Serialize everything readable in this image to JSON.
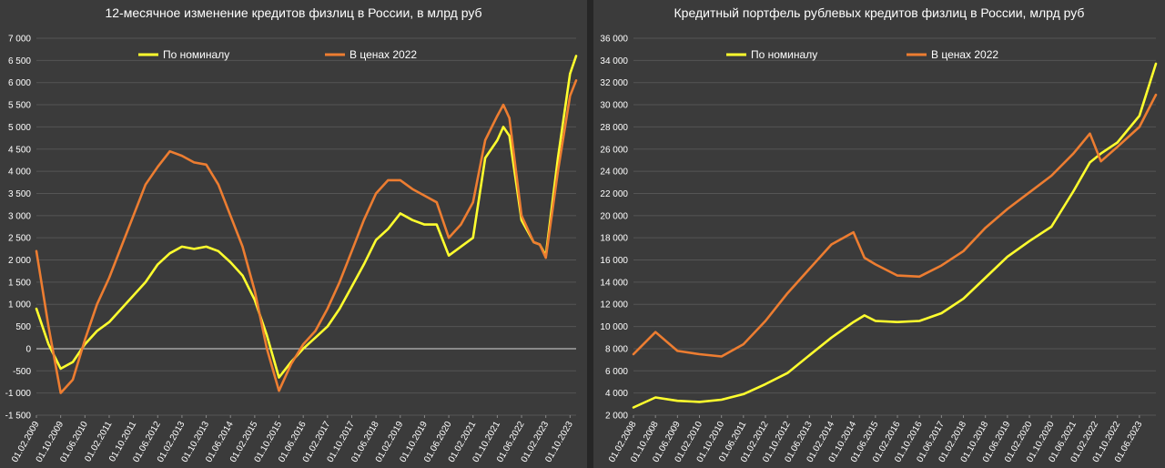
{
  "colors": {
    "nominal": "#ffff2e",
    "real": "#ed7d31",
    "grid": "#555555",
    "zero": "#d9d9d9"
  },
  "chart_data": [
    {
      "type": "line",
      "title": "12-месячное изменение кредитов физлиц в России, в млрд руб",
      "ylim": [
        -1500,
        7000
      ],
      "yticks": [
        -1500,
        -1000,
        -500,
        0,
        500,
        1000,
        1500,
        2000,
        2500,
        3000,
        3500,
        4000,
        4500,
        5000,
        5500,
        6000,
        6500,
        7000
      ],
      "ytick_labels": [
        "-1 500",
        "-1 000",
        "-500",
        "0",
        "500",
        "1 000",
        "1 500",
        "2 000",
        "2 500",
        "3 000",
        "3 500",
        "4 000",
        "4 500",
        "5 000",
        "5 500",
        "6 000",
        "6 500",
        "7 000"
      ],
      "xlim": [
        "2009-02-01",
        "2023-12-01"
      ],
      "xtick_labels": [
        "01.02.2009",
        "01.10.2009",
        "01.06.2010",
        "01.02.2011",
        "01.10.2011",
        "01.06.2012",
        "01.02.2013",
        "01.10.2013",
        "01.06.2014",
        "01.02.2015",
        "01.10.2015",
        "01.06.2016",
        "01.02.2017",
        "01.10.2017",
        "01.06.2018",
        "01.02.2019",
        "01.10.2019",
        "01.06.2020",
        "01.02.2021",
        "01.10.2021",
        "01.06.2022",
        "01.02.2023",
        "01.10.2023"
      ],
      "legend": "top",
      "series": [
        {
          "name": "По номиналу",
          "points": [
            [
              "2009-02-01",
              900
            ],
            [
              "2009-06-01",
              100
            ],
            [
              "2009-10-01",
              -450
            ],
            [
              "2010-02-01",
              -300
            ],
            [
              "2010-06-01",
              100
            ],
            [
              "2010-10-01",
              400
            ],
            [
              "2011-02-01",
              600
            ],
            [
              "2011-06-01",
              900
            ],
            [
              "2011-10-01",
              1200
            ],
            [
              "2012-02-01",
              1500
            ],
            [
              "2012-06-01",
              1900
            ],
            [
              "2012-10-01",
              2150
            ],
            [
              "2013-02-01",
              2300
            ],
            [
              "2013-06-01",
              2250
            ],
            [
              "2013-10-01",
              2300
            ],
            [
              "2014-02-01",
              2200
            ],
            [
              "2014-06-01",
              1950
            ],
            [
              "2014-10-01",
              1650
            ],
            [
              "2015-02-01",
              1100
            ],
            [
              "2015-06-01",
              300
            ],
            [
              "2015-10-01",
              -650
            ],
            [
              "2016-02-01",
              -300
            ],
            [
              "2016-06-01",
              0
            ],
            [
              "2016-10-01",
              250
            ],
            [
              "2017-02-01",
              500
            ],
            [
              "2017-06-01",
              900
            ],
            [
              "2017-10-01",
              1400
            ],
            [
              "2018-02-01",
              1900
            ],
            [
              "2018-06-01",
              2450
            ],
            [
              "2018-10-01",
              2700
            ],
            [
              "2019-02-01",
              3050
            ],
            [
              "2019-06-01",
              2900
            ],
            [
              "2019-10-01",
              2800
            ],
            [
              "2020-02-01",
              2800
            ],
            [
              "2020-06-01",
              2100
            ],
            [
              "2020-10-01",
              2300
            ],
            [
              "2021-02-01",
              2500
            ],
            [
              "2021-06-01",
              4300
            ],
            [
              "2021-10-01",
              4700
            ],
            [
              "2021-12-01",
              5000
            ],
            [
              "2022-02-01",
              4800
            ],
            [
              "2022-06-01",
              2900
            ],
            [
              "2022-10-01",
              2400
            ],
            [
              "2022-12-01",
              2350
            ],
            [
              "2023-02-01",
              2100
            ],
            [
              "2023-06-01",
              4300
            ],
            [
              "2023-10-01",
              6200
            ],
            [
              "2023-12-01",
              6600
            ]
          ]
        },
        {
          "name": "В ценах 2022",
          "points": [
            [
              "2009-02-01",
              2200
            ],
            [
              "2009-06-01",
              500
            ],
            [
              "2009-10-01",
              -1000
            ],
            [
              "2010-02-01",
              -700
            ],
            [
              "2010-06-01",
              200
            ],
            [
              "2010-10-01",
              1000
            ],
            [
              "2011-02-01",
              1600
            ],
            [
              "2011-06-01",
              2300
            ],
            [
              "2011-10-01",
              3000
            ],
            [
              "2012-02-01",
              3700
            ],
            [
              "2012-06-01",
              4100
            ],
            [
              "2012-10-01",
              4450
            ],
            [
              "2013-02-01",
              4350
            ],
            [
              "2013-06-01",
              4200
            ],
            [
              "2013-10-01",
              4150
            ],
            [
              "2014-02-01",
              3700
            ],
            [
              "2014-06-01",
              3000
            ],
            [
              "2014-10-01",
              2300
            ],
            [
              "2015-02-01",
              1300
            ],
            [
              "2015-06-01",
              0
            ],
            [
              "2015-10-01",
              -950
            ],
            [
              "2016-02-01",
              -350
            ],
            [
              "2016-06-01",
              100
            ],
            [
              "2016-10-01",
              400
            ],
            [
              "2017-02-01",
              900
            ],
            [
              "2017-06-01",
              1500
            ],
            [
              "2017-10-01",
              2200
            ],
            [
              "2018-02-01",
              2900
            ],
            [
              "2018-06-01",
              3500
            ],
            [
              "2018-10-01",
              3800
            ],
            [
              "2019-02-01",
              3800
            ],
            [
              "2019-06-01",
              3600
            ],
            [
              "2019-10-01",
              3450
            ],
            [
              "2020-02-01",
              3300
            ],
            [
              "2020-06-01",
              2500
            ],
            [
              "2020-10-01",
              2800
            ],
            [
              "2021-02-01",
              3300
            ],
            [
              "2021-06-01",
              4700
            ],
            [
              "2021-10-01",
              5250
            ],
            [
              "2021-12-01",
              5500
            ],
            [
              "2022-02-01",
              5200
            ],
            [
              "2022-06-01",
              3000
            ],
            [
              "2022-10-01",
              2400
            ],
            [
              "2022-12-01",
              2350
            ],
            [
              "2023-02-01",
              2050
            ],
            [
              "2023-06-01",
              4000
            ],
            [
              "2023-10-01",
              5700
            ],
            [
              "2023-12-01",
              6050
            ]
          ]
        }
      ]
    },
    {
      "type": "line",
      "title": "Кредитный портфель рублевых кредитов физлиц в России, млрд руб",
      "ylim": [
        2000,
        36000
      ],
      "yticks": [
        2000,
        4000,
        6000,
        8000,
        10000,
        12000,
        14000,
        16000,
        18000,
        20000,
        22000,
        24000,
        26000,
        28000,
        30000,
        32000,
        34000,
        36000
      ],
      "ytick_labels": [
        "2 000",
        "4 000",
        "6 000",
        "8 000",
        "10 000",
        "12 000",
        "14 000",
        "16 000",
        "18 000",
        "20 000",
        "22 000",
        "24 000",
        "26 000",
        "28 000",
        "30 000",
        "32 000",
        "34 000",
        "36 000"
      ],
      "xlim": [
        "2008-02-01",
        "2023-12-01"
      ],
      "xtick_labels": [
        "01.02.2008",
        "01.10.2008",
        "01.06.2009",
        "01.02.2010",
        "01.10.2010",
        "01.06.2011",
        "01.02.2012",
        "01.10.2012",
        "01.06.2013",
        "01.02.2014",
        "01.10.2014",
        "01.06.2015",
        "01.02.2016",
        "01.10.2016",
        "01.06.2017",
        "01.02.2018",
        "01.10.2018",
        "01.06.2019",
        "01.02.2020",
        "01.10.2020",
        "01.06.2021",
        "01.02.2022",
        "01.10.2022",
        "01.06.2023"
      ],
      "legend": "top",
      "series": [
        {
          "name": "По номиналу",
          "points": [
            [
              "2008-02-01",
              2700
            ],
            [
              "2008-10-01",
              3600
            ],
            [
              "2009-06-01",
              3300
            ],
            [
              "2010-02-01",
              3200
            ],
            [
              "2010-10-01",
              3400
            ],
            [
              "2011-06-01",
              3900
            ],
            [
              "2012-02-01",
              4800
            ],
            [
              "2012-10-01",
              5800
            ],
            [
              "2013-06-01",
              7400
            ],
            [
              "2014-02-01",
              9000
            ],
            [
              "2014-10-01",
              10400
            ],
            [
              "2015-02-01",
              11000
            ],
            [
              "2015-06-01",
              10500
            ],
            [
              "2016-02-01",
              10400
            ],
            [
              "2016-10-01",
              10500
            ],
            [
              "2017-06-01",
              11200
            ],
            [
              "2018-02-01",
              12500
            ],
            [
              "2018-10-01",
              14400
            ],
            [
              "2019-06-01",
              16300
            ],
            [
              "2020-02-01",
              17700
            ],
            [
              "2020-10-01",
              19000
            ],
            [
              "2021-06-01",
              22200
            ],
            [
              "2021-12-01",
              24800
            ],
            [
              "2022-04-01",
              25600
            ],
            [
              "2022-10-01",
              26600
            ],
            [
              "2023-06-01",
              29000
            ],
            [
              "2023-12-01",
              33700
            ]
          ]
        },
        {
          "name": "В ценах 2022",
          "points": [
            [
              "2008-02-01",
              7500
            ],
            [
              "2008-10-01",
              9500
            ],
            [
              "2009-06-01",
              7800
            ],
            [
              "2010-02-01",
              7500
            ],
            [
              "2010-10-01",
              7300
            ],
            [
              "2011-06-01",
              8400
            ],
            [
              "2012-02-01",
              10500
            ],
            [
              "2012-10-01",
              13000
            ],
            [
              "2013-06-01",
              15200
            ],
            [
              "2014-02-01",
              17400
            ],
            [
              "2014-10-01",
              18500
            ],
            [
              "2015-02-01",
              16200
            ],
            [
              "2015-06-01",
              15600
            ],
            [
              "2016-02-01",
              14600
            ],
            [
              "2016-10-01",
              14500
            ],
            [
              "2017-06-01",
              15500
            ],
            [
              "2018-02-01",
              16800
            ],
            [
              "2018-10-01",
              18900
            ],
            [
              "2019-06-01",
              20600
            ],
            [
              "2020-02-01",
              22100
            ],
            [
              "2020-10-01",
              23600
            ],
            [
              "2021-06-01",
              25600
            ],
            [
              "2021-12-01",
              27400
            ],
            [
              "2022-04-01",
              24900
            ],
            [
              "2022-10-01",
              26200
            ],
            [
              "2023-06-01",
              28000
            ],
            [
              "2023-12-01",
              30900
            ]
          ]
        }
      ]
    }
  ]
}
